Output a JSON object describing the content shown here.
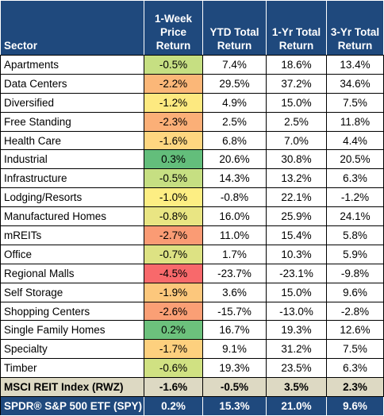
{
  "headers": {
    "sector": "Sector",
    "week": "1-Week Price Return",
    "ytd": "YTD Total Return",
    "one_yr": "1-Yr Total Return",
    "three_yr": "3-Yr Total Return"
  },
  "rows": [
    {
      "sector": "Apartments",
      "week": "-0.5%",
      "ytd": "7.4%",
      "one_yr": "18.6%",
      "three_yr": "13.4%",
      "week_color": "#c6df82"
    },
    {
      "sector": "Data Centers",
      "week": "-2.2%",
      "ytd": "29.5%",
      "one_yr": "37.2%",
      "three_yr": "34.6%",
      "week_color": "#fbb778"
    },
    {
      "sector": "Diversified",
      "week": "-1.2%",
      "ytd": "4.9%",
      "one_yr": "15.0%",
      "three_yr": "7.5%",
      "week_color": "#fde980"
    },
    {
      "sector": "Free Standing",
      "week": "-2.3%",
      "ytd": "2.5%",
      "one_yr": "2.5%",
      "three_yr": "11.8%",
      "week_color": "#fbaf77"
    },
    {
      "sector": "Health Care",
      "week": "-1.6%",
      "ytd": "6.8%",
      "one_yr": "7.0%",
      "three_yr": "4.4%",
      "week_color": "#fed680"
    },
    {
      "sector": "Industrial",
      "week": "0.3%",
      "ytd": "20.6%",
      "one_yr": "30.8%",
      "three_yr": "20.5%",
      "week_color": "#63be7b"
    },
    {
      "sector": "Infrastructure",
      "week": "-0.5%",
      "ytd": "14.3%",
      "one_yr": "13.2%",
      "three_yr": "6.3%",
      "week_color": "#c6df82"
    },
    {
      "sector": "Lodging/Resorts",
      "week": "-1.0%",
      "ytd": "-0.8%",
      "one_yr": "22.1%",
      "three_yr": "-1.2%",
      "week_color": "#fdee83"
    },
    {
      "sector": "Manufactured Homes",
      "week": "-0.8%",
      "ytd": "16.0%",
      "one_yr": "25.9%",
      "three_yr": "24.1%",
      "week_color": "#e9e583"
    },
    {
      "sector": "mREITs",
      "week": "-2.7%",
      "ytd": "11.0%",
      "one_yr": "15.4%",
      "three_yr": "5.8%",
      "week_color": "#fa9b74"
    },
    {
      "sector": "Office",
      "week": "-0.7%",
      "ytd": "1.7%",
      "one_yr": "10.3%",
      "three_yr": "5.9%",
      "week_color": "#dde283"
    },
    {
      "sector": "Regional Malls",
      "week": "-4.5%",
      "ytd": "-23.7%",
      "one_yr": "-23.1%",
      "three_yr": "-9.8%",
      "week_color": "#f8696b"
    },
    {
      "sector": "Self Storage",
      "week": "-1.9%",
      "ytd": "3.6%",
      "one_yr": "15.0%",
      "three_yr": "9.6%",
      "week_color": "#fcc77c"
    },
    {
      "sector": "Shopping Centers",
      "week": "-2.6%",
      "ytd": "-15.7%",
      "one_yr": "-13.0%",
      "three_yr": "-2.8%",
      "week_color": "#fa9f75"
    },
    {
      "sector": "Single Family Homes",
      "week": "0.2%",
      "ytd": "16.7%",
      "one_yr": "19.3%",
      "three_yr": "12.6%",
      "week_color": "#6cc17c"
    },
    {
      "sector": "Specialty",
      "week": "-1.7%",
      "ytd": "9.1%",
      "one_yr": "31.2%",
      "three_yr": "7.5%",
      "week_color": "#fdd07e"
    },
    {
      "sector": "Timber",
      "week": "-0.6%",
      "ytd": "19.3%",
      "one_yr": "23.5%",
      "three_yr": "6.3%",
      "week_color": "#d0e182"
    }
  ],
  "index_row": {
    "sector": "MSCI REIT Index (RWZ)",
    "week": "-1.6%",
    "ytd": "-0.5%",
    "one_yr": "3.5%",
    "three_yr": "2.3%"
  },
  "spy_row": {
    "sector": "SPDR® S&P 500 ETF (SPY)",
    "week": "0.2%",
    "ytd": "15.3%",
    "one_yr": "21.0%",
    "three_yr": "9.6%"
  },
  "colors": {
    "header_bg": "#1f497d",
    "index_bg": "#ddd9c3",
    "heat_red": "#f8696b",
    "heat_yellow": "#ffeb84",
    "heat_green": "#63be7b"
  }
}
